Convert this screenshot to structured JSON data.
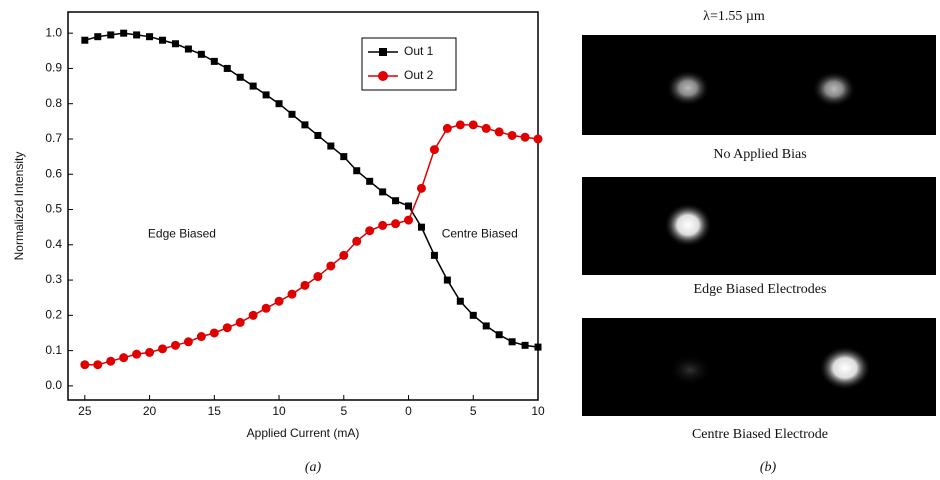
{
  "chart_data": {
    "type": "line",
    "xlabel": "Applied Current (mA)",
    "ylabel": "Normalized Intensity",
    "annotations": [
      "Edge Biased",
      "Centre Biased"
    ],
    "xlim": [
      -26.3,
      10
    ],
    "ylim": [
      -0.04,
      1.06
    ],
    "xticks": [
      {
        "value": -25,
        "label": "25"
      },
      {
        "value": -20,
        "label": "20"
      },
      {
        "value": -15,
        "label": "15"
      },
      {
        "value": -10,
        "label": "10"
      },
      {
        "value": -5,
        "label": "5"
      },
      0,
      5,
      10
    ],
    "yticks": [
      {
        "value": 0,
        "label": "0.0"
      },
      0.1,
      0.2,
      0.3,
      0.4,
      0.5,
      0.6,
      0.7,
      0.8,
      0.9,
      {
        "value": 1,
        "label": "1.0"
      }
    ],
    "legend": "top-right",
    "series": [
      {
        "name": "Out 1",
        "color": "#000000",
        "marker": "square",
        "x": [
          -25,
          -24,
          -23,
          -22,
          -21,
          -20,
          -19,
          -18,
          -17,
          -16,
          -15,
          -14,
          -13,
          -12,
          -11,
          -10,
          -9,
          -8,
          -7,
          -6,
          -5,
          -4,
          -3,
          -2,
          -1,
          0,
          1,
          2,
          3,
          4,
          5,
          6,
          7,
          8,
          9,
          10
        ],
        "values": [
          0.98,
          0.99,
          0.995,
          1.0,
          0.995,
          0.99,
          0.98,
          0.97,
          0.955,
          0.94,
          0.92,
          0.9,
          0.875,
          0.85,
          0.825,
          0.8,
          0.77,
          0.74,
          0.71,
          0.68,
          0.65,
          0.61,
          0.58,
          0.55,
          0.525,
          0.51,
          0.45,
          0.37,
          0.3,
          0.24,
          0.2,
          0.17,
          0.145,
          0.125,
          0.115,
          0.11
        ]
      },
      {
        "name": "Out 2",
        "color": "#e00000",
        "marker": "circle",
        "x": [
          -25,
          -24,
          -23,
          -22,
          -21,
          -20,
          -19,
          -18,
          -17,
          -16,
          -15,
          -14,
          -13,
          -12,
          -11,
          -10,
          -9,
          -8,
          -7,
          -6,
          -5,
          -4,
          -3,
          -2,
          -1,
          0,
          1,
          2,
          3,
          4,
          5,
          6,
          7,
          8,
          9,
          10
        ],
        "values": [
          0.06,
          0.06,
          0.07,
          0.08,
          0.09,
          0.095,
          0.105,
          0.115,
          0.125,
          0.14,
          0.15,
          0.165,
          0.18,
          0.2,
          0.22,
          0.24,
          0.26,
          0.285,
          0.31,
          0.34,
          0.37,
          0.41,
          0.44,
          0.455,
          0.46,
          0.47,
          0.56,
          0.67,
          0.73,
          0.74,
          0.74,
          0.73,
          0.72,
          0.71,
          0.705,
          0.7
        ]
      }
    ]
  },
  "panel_b": {
    "title": "λ=1.55 µm",
    "captions": [
      "No Applied Bias",
      "Edge Biased Electrodes",
      "Centre Biased Electrode"
    ]
  },
  "panel_labels": [
    "(a)",
    "(b)"
  ]
}
